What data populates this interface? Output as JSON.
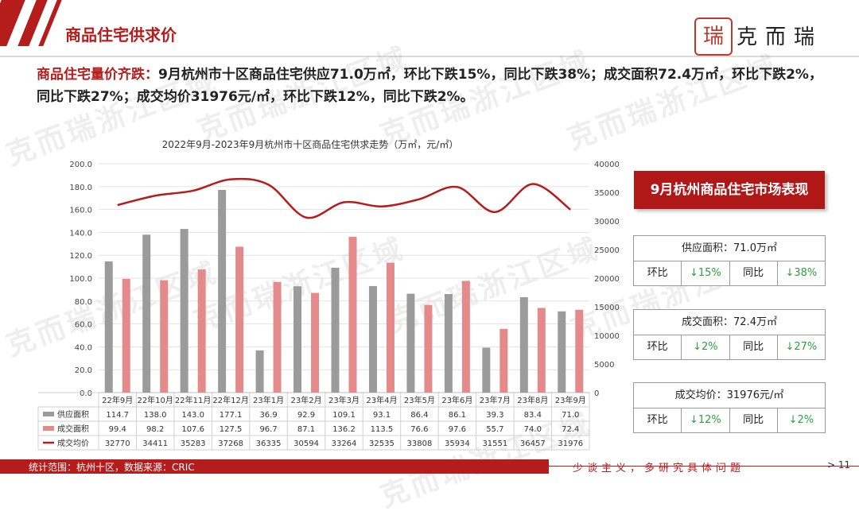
{
  "header": {
    "title": "商品住宅供求价",
    "logo_text": "克而瑞",
    "logo_seal_glyph": "瑞"
  },
  "headline": {
    "lead": "商品住宅量价齐跌：",
    "body": "9月杭州市十区商品住宅供应71.0万㎡，环比下跌15%，同比下跌38%；成交面积72.4万㎡，环比下跌2%，同比下跌27%；成交均价31976元/㎡，环比下跌12%，同比下跌2%。"
  },
  "watermark": "克而瑞浙江区域",
  "chart_data": {
    "type": "bar",
    "title": "2022年9月-2023年9月杭州市十区商品住宅供求走势（万㎡，元/㎡）",
    "categories": [
      "22年9月",
      "22年10月",
      "22年11月",
      "22年12月",
      "23年1月",
      "23年2月",
      "23年3月",
      "23年4月",
      "23年5月",
      "23年6月",
      "23年7月",
      "23年8月",
      "23年9月"
    ],
    "series": [
      {
        "name": "供应面积",
        "kind": "bar",
        "axis": "left",
        "color": "#9b9b9b",
        "values": [
          114.7,
          138.0,
          143.0,
          177.1,
          36.9,
          92.9,
          109.1,
          93.1,
          86.4,
          86.1,
          39.3,
          83.4,
          71.0
        ],
        "labels": [
          "114.7",
          "138.0",
          "143.0",
          "177.1",
          "36.9",
          "92.9",
          "109.1",
          "93.1",
          "86.4",
          "86.1",
          "39.3",
          "83.4",
          "71.0"
        ]
      },
      {
        "name": "成交面积",
        "kind": "bar",
        "axis": "left",
        "color": "#e48a8a",
        "values": [
          99.4,
          98.2,
          107.6,
          127.5,
          96.7,
          87.1,
          136.2,
          113.5,
          76.6,
          97.6,
          55.7,
          74.0,
          72.4
        ],
        "labels": [
          "99.4",
          "98.2",
          "107.6",
          "127.5",
          "96.7",
          "87.1",
          "136.2",
          "113.5",
          "76.6",
          "97.6",
          "55.7",
          "74.0",
          "72.4"
        ]
      },
      {
        "name": "成交均价",
        "kind": "line",
        "axis": "right",
        "color": "#b51c1c",
        "values": [
          32770,
          34411,
          35283,
          37268,
          36335,
          30594,
          33264,
          32535,
          33808,
          35934,
          31551,
          36457,
          31976
        ],
        "labels": [
          "32770",
          "34411",
          "35283",
          "37268",
          "36335",
          "30594",
          "33264",
          "32535",
          "33808",
          "35934",
          "31551",
          "36457",
          "31976"
        ]
      }
    ],
    "y_left": {
      "min": 0,
      "max": 200,
      "step": 20,
      "ticks": [
        "0.0",
        "20.0",
        "40.0",
        "60.0",
        "80.0",
        "100.0",
        "120.0",
        "140.0",
        "160.0",
        "180.0",
        "200.0"
      ]
    },
    "y_right": {
      "min": 0,
      "max": 40000,
      "step": 5000,
      "ticks": [
        "0",
        "5000",
        "10000",
        "15000",
        "20000",
        "25000",
        "30000",
        "35000",
        "40000"
      ]
    },
    "grid": true,
    "legend": "data-table"
  },
  "panel": {
    "title": "9月杭州商品住宅市场表现",
    "boxes": [
      {
        "label": "供应面积：71.0万㎡",
        "mom_label": "环比",
        "mom_value": "↓15%",
        "yoy_label": "同比",
        "yoy_value": "↓38%"
      },
      {
        "label": "成交面积：72.4万㎡",
        "mom_label": "环比",
        "mom_value": "↓2%",
        "yoy_label": "同比",
        "yoy_value": "↓27%"
      },
      {
        "label": "成交均价：31976元/㎡",
        "mom_label": "环比",
        "mom_value": "↓12%",
        "yoy_label": "同比",
        "yoy_value": "↓2%"
      }
    ]
  },
  "footer": {
    "source": "统计范围：杭州十区，数据来源：CRIC",
    "slogan": "少谈主义，多研究具体问题",
    "page": "> 11"
  }
}
